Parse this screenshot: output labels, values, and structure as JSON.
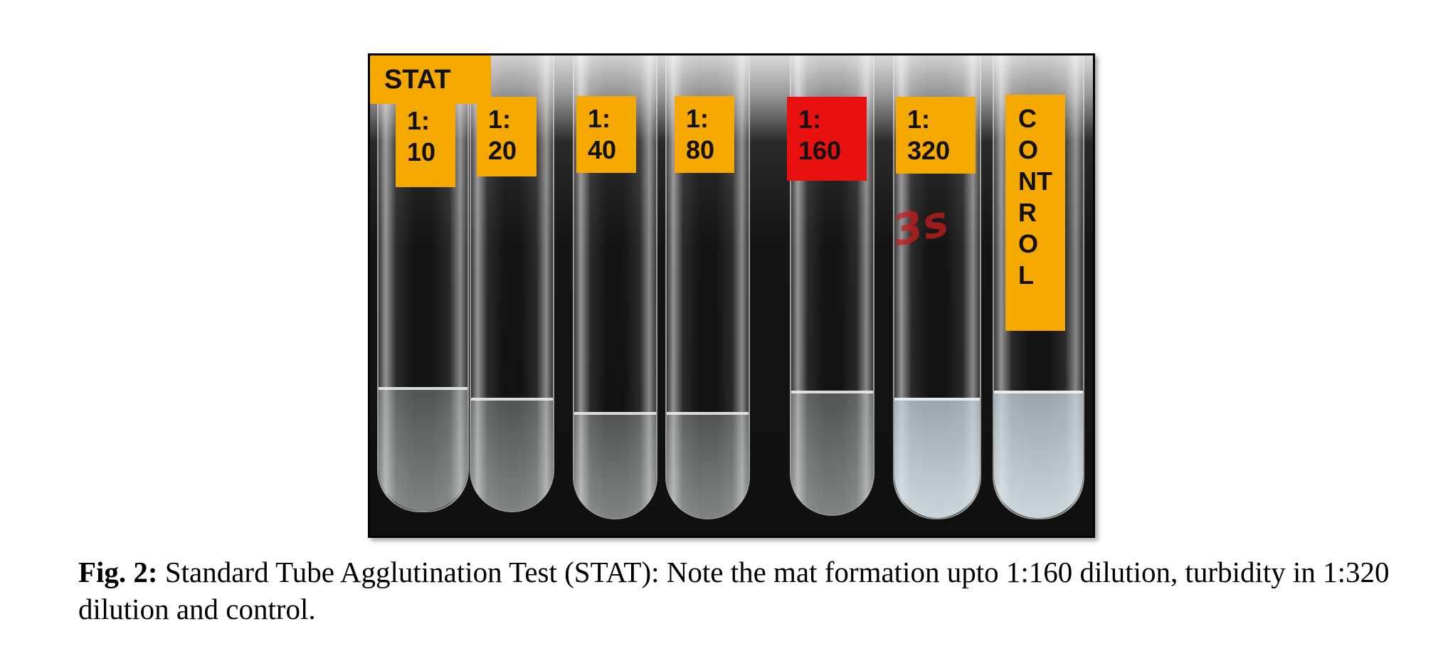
{
  "figure": {
    "stat_label": "STAT",
    "tubes": [
      {
        "label_line1": "1:",
        "label_line2": "10",
        "highlight": false,
        "turbid": false
      },
      {
        "label_line1": "1:",
        "label_line2": "20",
        "highlight": false,
        "turbid": false
      },
      {
        "label_line1": "1:",
        "label_line2": "40",
        "highlight": false,
        "turbid": false
      },
      {
        "label_line1": "1:",
        "label_line2": "80",
        "highlight": false,
        "turbid": false
      },
      {
        "label_line1": "1:",
        "label_line2": "160",
        "highlight": true,
        "turbid": false
      },
      {
        "label_line1": "1:",
        "label_line2": "320",
        "highlight": false,
        "turbid": true
      }
    ],
    "control_letters": [
      "C",
      "O",
      "NT",
      "R",
      "O",
      "L"
    ],
    "colors": {
      "label": "#f5a800",
      "highlight": "#e8110f"
    }
  },
  "caption": {
    "prefix": "Fig. 2:",
    "text": " Standard Tube Agglutination Test (STAT): Note the mat formation upto 1:160 dilution, turbidity in 1:320 dilution and control."
  }
}
